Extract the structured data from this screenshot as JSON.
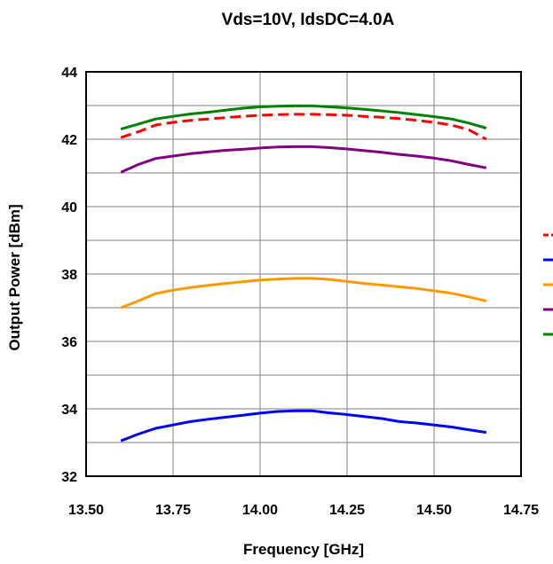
{
  "chart_data": {
    "type": "line",
    "title": "Vds=10V, IdsDC=4.0A",
    "xlabel": "Frequency [GHz]",
    "ylabel": "Output Power [dBm]",
    "xlim": [
      13.5,
      14.75
    ],
    "ylim": [
      32,
      44
    ],
    "xticks": [
      "13.50",
      "13.75",
      "14.00",
      "14.25",
      "14.50",
      "14.75"
    ],
    "yticks": [
      "32",
      "34",
      "36",
      "38",
      "40",
      "42",
      "44"
    ],
    "y_minor_step": 1,
    "grid": true,
    "legend": "right (labels cut off, markers only)",
    "x": [
      13.6,
      13.65,
      13.7,
      13.75,
      13.8,
      13.85,
      13.9,
      13.95,
      14.0,
      14.05,
      14.1,
      14.15,
      14.2,
      14.25,
      14.3,
      14.35,
      14.4,
      14.45,
      14.5,
      14.55,
      14.6,
      14.65
    ],
    "series": [
      {
        "color": "#0000ff",
        "dash": "solid",
        "values": [
          33.05,
          33.25,
          33.42,
          33.52,
          33.62,
          33.69,
          33.75,
          33.81,
          33.87,
          33.92,
          33.94,
          33.94,
          33.88,
          33.83,
          33.77,
          33.71,
          33.62,
          33.58,
          33.52,
          33.46,
          33.38,
          33.3
        ]
      },
      {
        "color": "#ff9900",
        "dash": "solid",
        "values": [
          37.0,
          37.2,
          37.42,
          37.52,
          37.6,
          37.66,
          37.72,
          37.77,
          37.82,
          37.85,
          37.87,
          37.87,
          37.84,
          37.78,
          37.72,
          37.67,
          37.62,
          37.57,
          37.5,
          37.43,
          37.32,
          37.2
        ]
      },
      {
        "color": "#800080",
        "dash": "solid",
        "values": [
          41.02,
          41.25,
          41.43,
          41.5,
          41.57,
          41.62,
          41.67,
          41.7,
          41.74,
          41.77,
          41.78,
          41.78,
          41.75,
          41.71,
          41.66,
          41.61,
          41.55,
          41.5,
          41.44,
          41.36,
          41.25,
          41.15
        ]
      },
      {
        "color": "#ff0000",
        "dash": "dashed",
        "values": [
          42.05,
          42.22,
          42.42,
          42.5,
          42.56,
          42.6,
          42.64,
          42.68,
          42.71,
          42.73,
          42.74,
          42.74,
          42.73,
          42.71,
          42.68,
          42.65,
          42.61,
          42.56,
          42.5,
          42.42,
          42.28,
          42.0
        ]
      },
      {
        "color": "#008000",
        "dash": "solid",
        "values": [
          42.3,
          42.45,
          42.6,
          42.68,
          42.75,
          42.8,
          42.86,
          42.92,
          42.96,
          42.98,
          42.99,
          42.99,
          42.96,
          42.93,
          42.89,
          42.84,
          42.79,
          42.73,
          42.67,
          42.6,
          42.48,
          42.33
        ]
      }
    ]
  }
}
